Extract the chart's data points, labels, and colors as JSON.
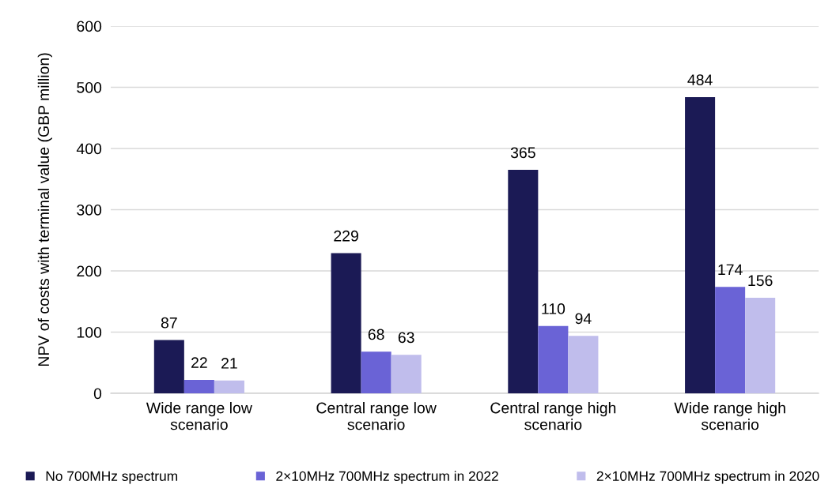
{
  "chart_data": {
    "type": "bar",
    "ylabel": "NPV of costs with terminal value (GBP million)",
    "categories": [
      "Wide range low\nscenario",
      "Central range low\nscenario",
      "Central range high\nscenario",
      "Wide range high\nscenario"
    ],
    "series": [
      {
        "name": "No 700MHz spectrum",
        "color": "#1b1a55",
        "values": [
          87,
          229,
          365,
          484
        ]
      },
      {
        "name": "2×10MHz 700MHz spectrum in 2022",
        "color": "#6a63d6",
        "values": [
          22,
          68,
          110,
          174
        ]
      },
      {
        "name": "2×10MHz 700MHz spectrum in 2020",
        "color": "#c0bdec",
        "values": [
          21,
          63,
          94,
          156
        ]
      }
    ],
    "ylim": [
      0,
      600
    ],
    "yticks": [
      0,
      100,
      200,
      300,
      400,
      500,
      600
    ],
    "grid": "y",
    "legend": "bottom",
    "data_labels": true
  }
}
